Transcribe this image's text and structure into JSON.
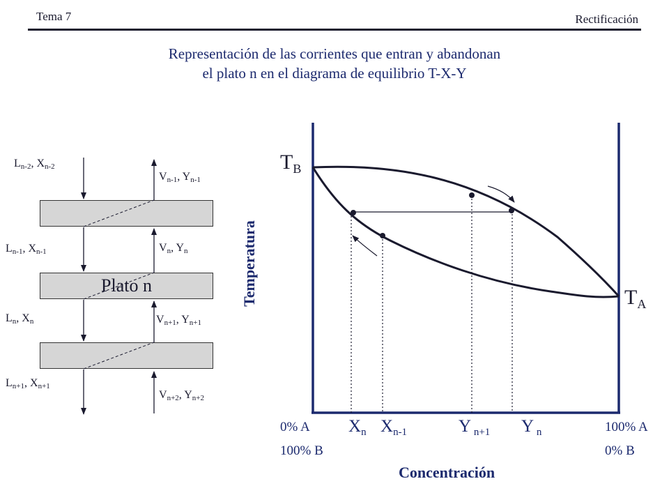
{
  "header": {
    "topic": "Tema 7",
    "section": "Rectificación"
  },
  "title_lines": [
    "Representación de las corrientes que entran y abandonan",
    "el plato n en el diagrama de equilibrio T-X-Y"
  ],
  "column": {
    "plate_label": "Plato n",
    "streams": {
      "l_nm2": {
        "base": "L",
        "sub": "n-2",
        "base2": "X",
        "sub2": "n-2"
      },
      "l_nm1": {
        "base": "L",
        "sub": "n-1",
        "base2": "X",
        "sub2": "n-1"
      },
      "l_n": {
        "base": "L",
        "sub": "n",
        "base2": "X",
        "sub2": "n"
      },
      "l_np1": {
        "base": "L",
        "sub": "n+1",
        "base2": "X",
        "sub2": "n+1"
      },
      "v_nm1": {
        "base": "V",
        "sub": "n-1",
        "base2": "Y",
        "sub2": "n-1"
      },
      "v_n": {
        "base": "V",
        "sub": "n",
        "base2": "Y",
        "sub2": "n"
      },
      "v_np1": {
        "base": "V",
        "sub": "n+1",
        "base2": "Y",
        "sub2": "n+1"
      },
      "v_np2": {
        "base": "V",
        "sub": "n+2",
        "base2": "Y",
        "sub2": "n+2"
      }
    }
  },
  "equilibrium": {
    "y_axis_title": "Temperatura",
    "x_axis_title": "Concentración",
    "tb": {
      "base": "T",
      "sub": "B"
    },
    "ta": {
      "base": "T",
      "sub": "A"
    },
    "left_end": {
      "line1": "0% A",
      "line2": "100% B"
    },
    "right_end": {
      "line1": "100% A",
      "line2": "0% B"
    },
    "x_marks": [
      {
        "base": "X",
        "sub": "n"
      },
      {
        "base": "X",
        "sub": "n-1"
      },
      {
        "base": "Y",
        "sub": " n+1"
      },
      {
        "base": "Y",
        "sub": " n"
      }
    ],
    "colors": {
      "ink": "#1a1a2e",
      "labels": "#1c2a6e",
      "plate_fill": "#d6d6d6"
    }
  }
}
